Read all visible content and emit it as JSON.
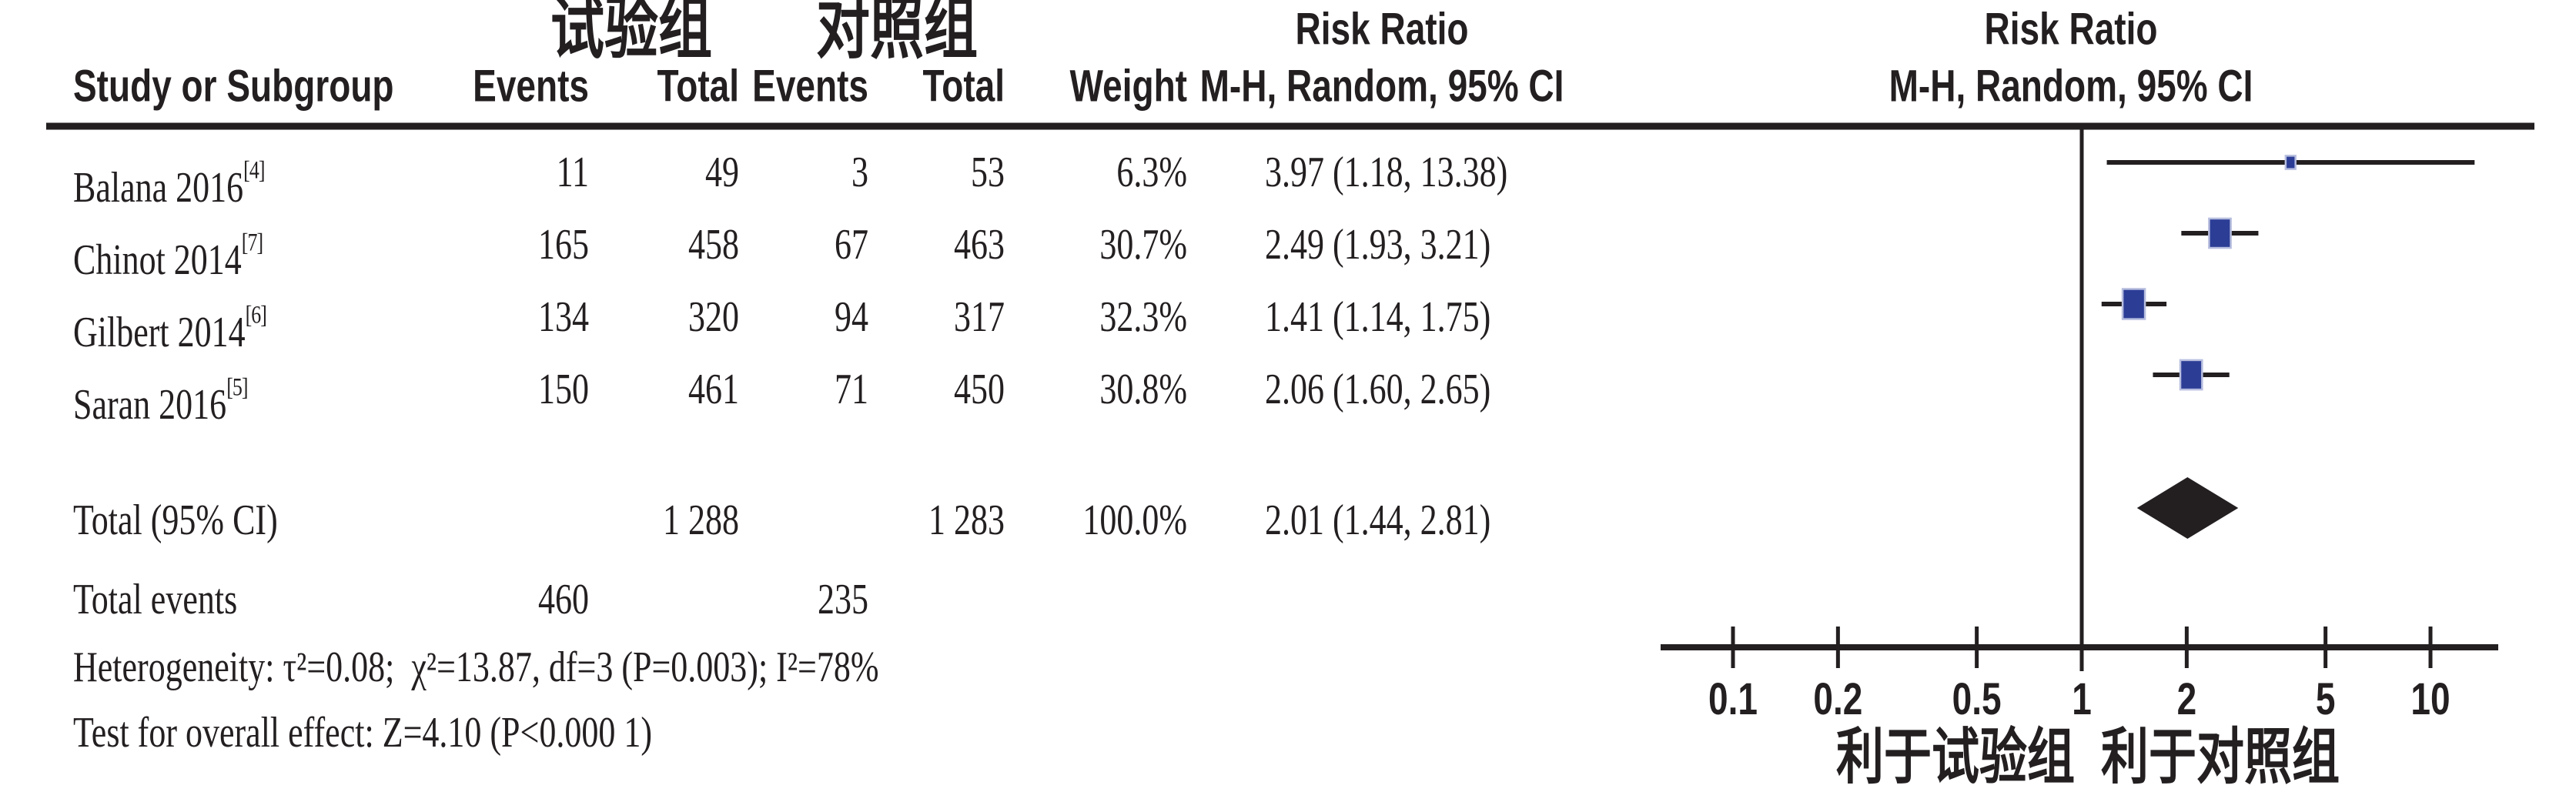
{
  "table": {
    "group1_header": "试验组",
    "group2_header": "对照组",
    "risk_ratio_header": "Risk Ratio",
    "method_header": "M-H, Random, 95% CI",
    "col_study": "Study or Subgroup",
    "col_events": "Events",
    "col_total": "Total",
    "col_weight": "Weight",
    "rows": [
      {
        "study": "Balana 2016",
        "ref": "[4]",
        "events1": "11",
        "total1": "49",
        "events2": "3",
        "total2": "53",
        "weight": "6.3%",
        "ci_text": "3.97 (1.18, 13.38)"
      },
      {
        "study": "Chinot 2014",
        "ref": "[7]",
        "events1": "165",
        "total1": "458",
        "events2": "67",
        "total2": "463",
        "weight": "30.7%",
        "ci_text": "2.49 (1.93, 3.21)"
      },
      {
        "study": "Gilbert 2014",
        "ref": "[6]",
        "events1": "134",
        "total1": "320",
        "events2": "94",
        "total2": "317",
        "weight": "32.3%",
        "ci_text": "1.41 (1.14, 1.75)"
      },
      {
        "study": "Saran 2016",
        "ref": "[5]",
        "events1": "150",
        "total1": "461",
        "events2": "71",
        "total2": "450",
        "weight": "30.8%",
        "ci_text": "2.06 (1.60, 2.65)"
      }
    ],
    "total_row": {
      "label": "Total (95% CI)",
      "total1": "1 288",
      "total2": "1 283",
      "weight": "100.0%",
      "ci_text": "2.01 (1.44, 2.81)"
    },
    "total_events": {
      "label": "Total events",
      "events1": "460",
      "events2": "235"
    },
    "heterogeneity": "Heterogeneity: τ²=0.08;  χ²=13.87, df=3 (P=0.003); I²=78%",
    "overall_effect": "Test for overall effect: Z=4.10 (P<0.000 1)"
  },
  "chart_data": {
    "type": "scatter",
    "subtype": "forest-plot",
    "x_scale": "log10",
    "x_ticks": [
      "0.1",
      "0.2",
      "0.5",
      "1",
      "2",
      "5",
      "10"
    ],
    "null_value": 1,
    "studies": [
      {
        "label": "Balana 2016",
        "rr": 3.97,
        "ci_low": 1.18,
        "ci_high": 13.38,
        "weight_pct": 6.3
      },
      {
        "label": "Chinot 2014",
        "rr": 2.49,
        "ci_low": 1.93,
        "ci_high": 3.21,
        "weight_pct": 30.7
      },
      {
        "label": "Gilbert 2014",
        "rr": 1.41,
        "ci_low": 1.14,
        "ci_high": 1.75,
        "weight_pct": 32.3
      },
      {
        "label": "Saran 2016",
        "rr": 2.06,
        "ci_low": 1.6,
        "ci_high": 2.65,
        "weight_pct": 30.8
      }
    ],
    "overall": {
      "label": "Total (95% CI)",
      "rr": 2.01,
      "ci_low": 1.44,
      "ci_high": 2.81,
      "weight_pct": 100.0
    },
    "favors_left": "利于试验组",
    "favors_right": "利于对照组",
    "marker_color": "#2c3d96",
    "marker_edge_color": "#b7bedf",
    "diamond_color": "#231f20",
    "line_color": "#231f20"
  }
}
